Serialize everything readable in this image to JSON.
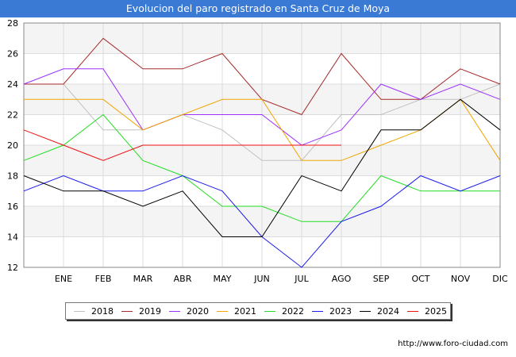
{
  "title": "Evolucion del paro registrado en Santa Cruz de Moya",
  "source": "http://www.foro-ciudad.com",
  "chart_data": {
    "type": "line",
    "title": "Evolucion del paro registrado en Santa Cruz de Moya",
    "x_labels": [
      "",
      "ENE",
      "FEB",
      "MAR",
      "ABR",
      "MAY",
      "JUN",
      "JUL",
      "AGO",
      "SEP",
      "OCT",
      "NOV",
      "DIC"
    ],
    "ylim": [
      12,
      28
    ],
    "y_ticks": [
      12,
      14,
      16,
      18,
      20,
      22,
      24,
      26,
      28
    ],
    "grid": true,
    "legend_position": "bottom",
    "series": [
      {
        "name": "2018",
        "color": "#c0c0c0",
        "values": [
          24,
          24,
          21,
          21,
          22,
          21,
          19,
          19,
          22,
          22,
          23,
          23,
          24
        ]
      },
      {
        "name": "2019",
        "color": "#a52a2a",
        "values": [
          24,
          24,
          27,
          25,
          25,
          26,
          23,
          22,
          26,
          23,
          23,
          25,
          24
        ]
      },
      {
        "name": "2020",
        "color": "#9b30ff",
        "values": [
          24,
          25,
          25,
          21,
          22,
          22,
          22,
          20,
          21,
          24,
          23,
          24,
          23
        ]
      },
      {
        "name": "2021",
        "color": "#f0a500",
        "values": [
          23,
          23,
          23,
          21,
          22,
          23,
          23,
          19,
          19,
          20,
          21,
          23,
          19
        ]
      },
      {
        "name": "2022",
        "color": "#22dd22",
        "values": [
          19,
          20,
          22,
          19,
          18,
          16,
          16,
          15,
          15,
          18,
          17,
          17,
          17
        ]
      },
      {
        "name": "2023",
        "color": "#1a1aee",
        "values": [
          17,
          18,
          17,
          17,
          18,
          17,
          14,
          12,
          15,
          16,
          18,
          17,
          18
        ]
      },
      {
        "name": "2024",
        "color": "#000000",
        "values": [
          18,
          17,
          17,
          16,
          17,
          14,
          14,
          18,
          17,
          21,
          21,
          23,
          21
        ]
      },
      {
        "name": "2025",
        "color": "#ee1111",
        "values": [
          21,
          20,
          19,
          20,
          20,
          20,
          20,
          20,
          20,
          null,
          null,
          null,
          null
        ]
      }
    ]
  }
}
